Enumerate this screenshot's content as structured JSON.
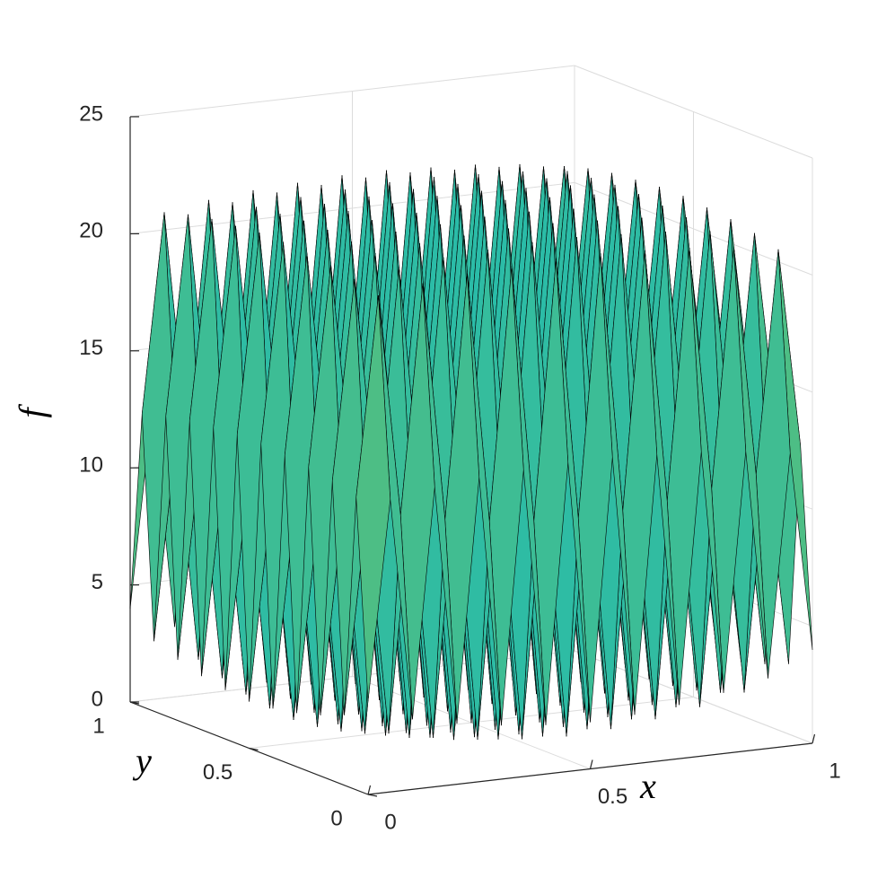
{
  "chart_data": {
    "type": "surface",
    "xlabel": "x",
    "ylabel": "y",
    "zlabel": "f",
    "x": [
      0,
      0.05,
      0.1,
      0.15,
      0.2,
      0.25,
      0.3,
      0.35,
      0.4,
      0.45,
      0.5,
      0.55,
      0.6,
      0.65,
      0.7,
      0.75,
      0.8,
      0.85,
      0.9,
      0.95,
      1
    ],
    "y": [
      0,
      0.05,
      0.1,
      0.15,
      0.2,
      0.25,
      0.3,
      0.35,
      0.4,
      0.45,
      0.5,
      0.55,
      0.6,
      0.65,
      0.7,
      0.75,
      0.8,
      0.85,
      0.9,
      0.95,
      1
    ],
    "z": [
      [
        4,
        12.5,
        3,
        12.8,
        2.6,
        13,
        2.3,
        13.1,
        2.1,
        13.2,
        2,
        13.2,
        2.1,
        13.1,
        2.3,
        13,
        2.6,
        12.8,
        3,
        12.5,
        4
      ],
      [
        12.5,
        21,
        11.5,
        21.3,
        11.1,
        21.5,
        10.8,
        21.6,
        10.6,
        21.7,
        10.5,
        21.7,
        10.6,
        21.6,
        10.8,
        21.5,
        11.1,
        21.3,
        11.5,
        21,
        12.5
      ],
      [
        3,
        11.5,
        2,
        11.8,
        1.6,
        12,
        1.3,
        12.1,
        1.1,
        12.2,
        1,
        12.2,
        1.1,
        12.1,
        1.3,
        12,
        1.6,
        11.8,
        2,
        11.5,
        3
      ],
      [
        12.8,
        21.3,
        11.8,
        21.6,
        11.4,
        21.8,
        11.1,
        21.9,
        10.9,
        22,
        10.8,
        22,
        10.9,
        21.9,
        11.1,
        21.8,
        11.4,
        21.6,
        11.8,
        21.3,
        12.8
      ],
      [
        2.6,
        11.1,
        1.6,
        11.4,
        1.2,
        11.6,
        0.9,
        11.7,
        0.7,
        11.8,
        0.6,
        11.8,
        0.7,
        11.7,
        0.9,
        11.6,
        1.2,
        11.4,
        1.6,
        11.1,
        2.6
      ],
      [
        13,
        21.5,
        12,
        21.8,
        11.6,
        22,
        11.3,
        22.1,
        11.1,
        22.2,
        11,
        22.2,
        11.1,
        22.1,
        11.3,
        22,
        11.6,
        21.8,
        12,
        21.5,
        13
      ],
      [
        2.3,
        10.8,
        1.3,
        11.1,
        0.9,
        11.3,
        0.6,
        11.4,
        0.4,
        11.5,
        0.3,
        11.5,
        0.4,
        11.4,
        0.6,
        11.3,
        0.9,
        11.1,
        1.3,
        10.8,
        2.3
      ],
      [
        13.1,
        21.6,
        12.1,
        21.9,
        11.7,
        22.1,
        11.4,
        22.2,
        11.2,
        22.3,
        11.1,
        22.3,
        11.2,
        22.2,
        11.4,
        22.1,
        11.7,
        21.9,
        12.1,
        21.6,
        13.1
      ],
      [
        2.1,
        10.6,
        1.1,
        10.9,
        0.7,
        11.1,
        0.4,
        11.2,
        0.2,
        11.3,
        0.1,
        11.3,
        0.2,
        11.2,
        0.4,
        11.1,
        0.7,
        10.9,
        1.1,
        10.6,
        2.1
      ],
      [
        13.2,
        21.7,
        12.2,
        22,
        11.8,
        22.2,
        11.5,
        22.3,
        11.3,
        22.4,
        11.2,
        22.4,
        11.3,
        22.3,
        11.5,
        22.2,
        11.8,
        22,
        12.2,
        21.7,
        13.2
      ],
      [
        2,
        10.5,
        1,
        10.8,
        0.6,
        11,
        0.3,
        11.1,
        0.1,
        11.2,
        0,
        11.2,
        0.1,
        11.1,
        0.3,
        11,
        0.6,
        10.8,
        1,
        10.5,
        2
      ],
      [
        13.2,
        21.7,
        12.2,
        22,
        11.8,
        22.2,
        11.5,
        22.3,
        11.3,
        22.4,
        11.2,
        22.4,
        11.3,
        22.3,
        11.5,
        22.2,
        11.8,
        22,
        12.2,
        21.7,
        13.2
      ],
      [
        2.1,
        10.6,
        1.1,
        10.9,
        0.7,
        11.1,
        0.4,
        11.2,
        0.2,
        11.3,
        0.1,
        11.3,
        0.2,
        11.2,
        0.4,
        11.1,
        0.7,
        10.9,
        1.1,
        10.6,
        2.1
      ],
      [
        13.1,
        21.6,
        12.1,
        21.9,
        11.7,
        22.1,
        11.4,
        22.2,
        11.2,
        22.3,
        11.1,
        22.3,
        11.2,
        22.2,
        11.4,
        22.1,
        11.7,
        21.9,
        12.1,
        21.6,
        13.1
      ],
      [
        2.3,
        10.8,
        1.3,
        11.1,
        0.9,
        11.3,
        0.6,
        11.4,
        0.4,
        11.5,
        0.3,
        11.5,
        0.4,
        11.4,
        0.6,
        11.3,
        0.9,
        11.1,
        1.3,
        10.8,
        2.3
      ],
      [
        13,
        21.5,
        12,
        21.8,
        11.6,
        22,
        11.3,
        22.1,
        11.1,
        22.2,
        11,
        22.2,
        11.1,
        22.1,
        11.3,
        22,
        11.6,
        21.8,
        12,
        21.5,
        13
      ],
      [
        2.6,
        11.1,
        1.6,
        11.4,
        1.2,
        11.6,
        0.9,
        11.7,
        0.7,
        11.8,
        0.6,
        11.8,
        0.7,
        11.7,
        0.9,
        11.6,
        1.2,
        11.4,
        1.6,
        11.1,
        2.6
      ],
      [
        12.8,
        21.3,
        11.8,
        21.6,
        11.4,
        21.8,
        11.1,
        21.9,
        10.9,
        22,
        10.8,
        22,
        10.9,
        21.9,
        11.1,
        21.8,
        11.4,
        21.6,
        11.8,
        21.3,
        12.8
      ],
      [
        3,
        11.5,
        2,
        11.8,
        1.6,
        12,
        1.3,
        12.1,
        1.1,
        12.2,
        1,
        12.2,
        1.1,
        12.1,
        1.3,
        12,
        1.6,
        11.8,
        2,
        11.5,
        3
      ],
      [
        12.5,
        21,
        11.5,
        21.3,
        11.1,
        21.5,
        10.8,
        21.6,
        10.6,
        21.7,
        10.5,
        21.7,
        10.6,
        21.6,
        10.8,
        21.5,
        11.1,
        21.3,
        11.5,
        21,
        12.5
      ],
      [
        4,
        12.5,
        3,
        12.8,
        2.6,
        13,
        2.3,
        13.1,
        2.1,
        13.2,
        2,
        13.2,
        2.1,
        13.1,
        2.3,
        13,
        2.6,
        12.8,
        3,
        12.5,
        4
      ]
    ],
    "xlim": [
      0,
      1
    ],
    "ylim": [
      0,
      1
    ],
    "zlim": [
      0,
      25
    ],
    "xticks": [
      0,
      0.5,
      1
    ],
    "yticks": [
      0,
      0.5,
      1
    ],
    "zticks": [
      0,
      5,
      10,
      15,
      20,
      25
    ],
    "grid": true,
    "colormap": "parula",
    "edge_color": "#000000"
  }
}
